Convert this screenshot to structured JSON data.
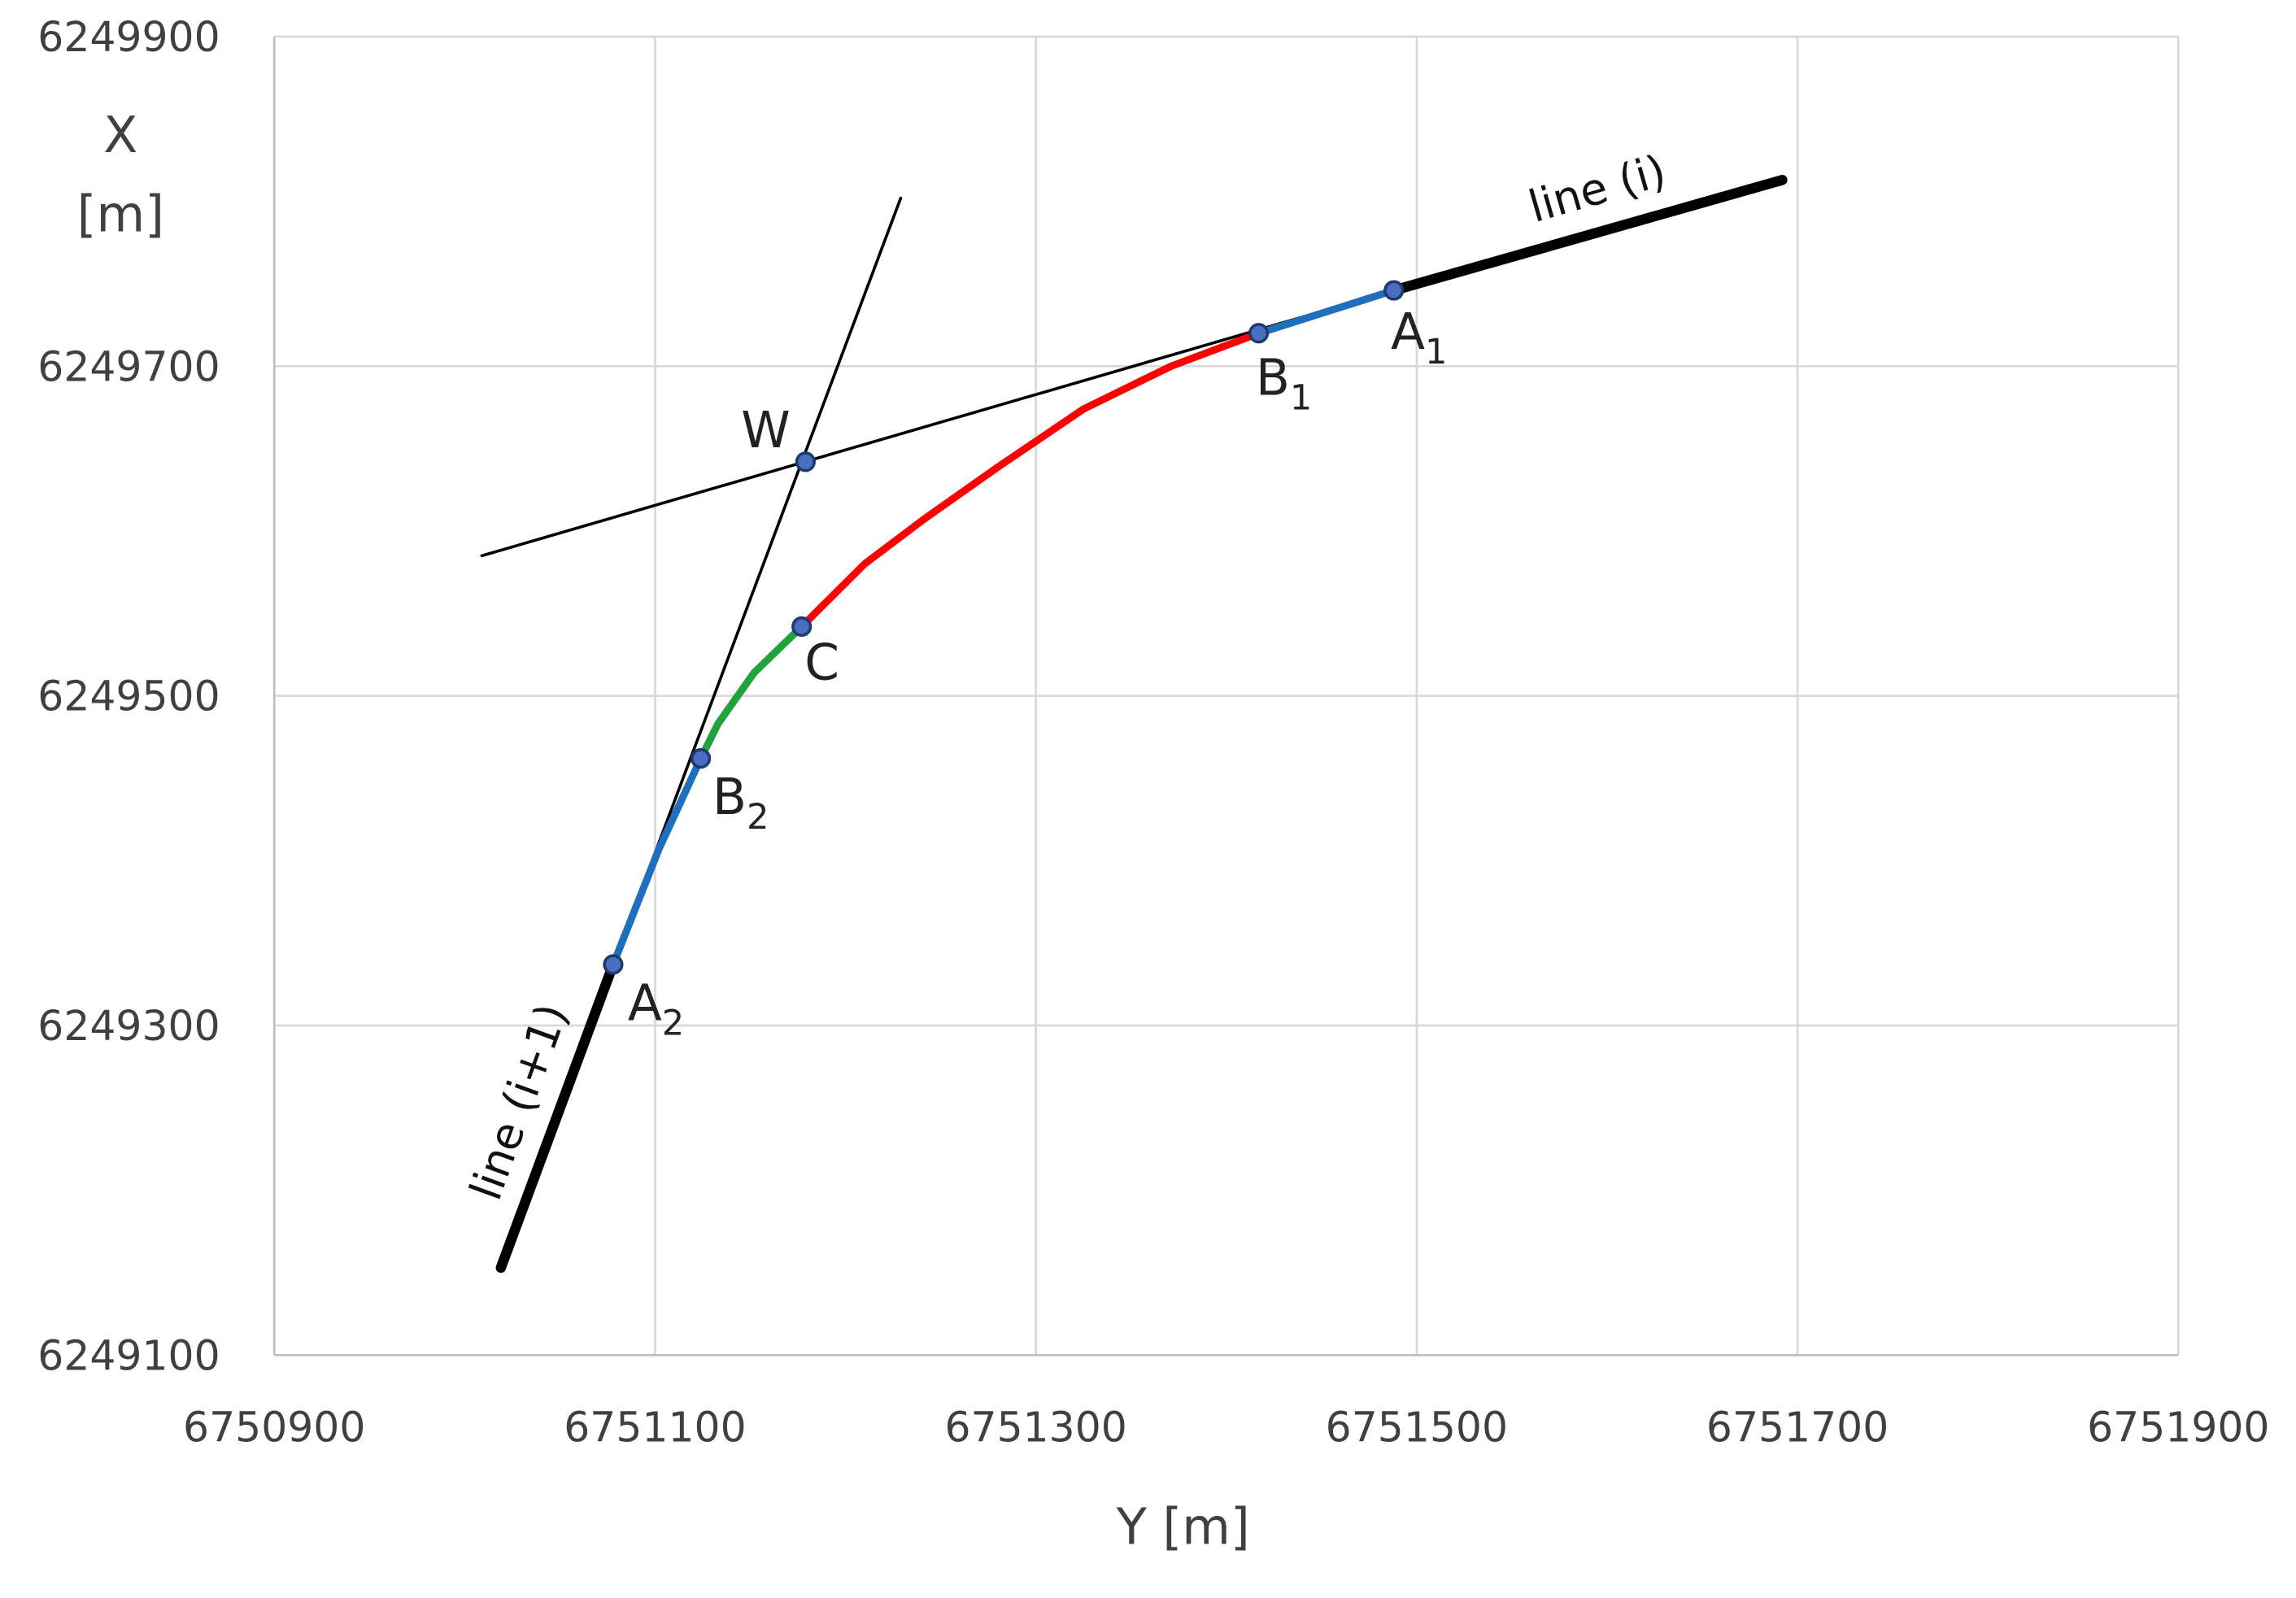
{
  "chart_data": {
    "type": "line",
    "xlabel": "Y [m]",
    "ylabel": [
      "X",
      "[m]"
    ],
    "xlim": [
      6750900,
      6751900
    ],
    "xticks": [
      6750900,
      6751100,
      6751300,
      6751500,
      6751700,
      6751900
    ],
    "ylim": [
      6249100,
      6249900
    ],
    "yticks": [
      6249100,
      6249300,
      6249500,
      6249700,
      6249900
    ],
    "grid": true,
    "series": [
      {
        "color": "#000000",
        "width": 2,
        "x": [
          6751009,
          6751488
        ],
        "values": [
          6249585,
          6249746
        ]
      },
      {
        "color": "#000000",
        "width": 2,
        "x": [
          6751229,
          6751078
        ],
        "values": [
          6249802,
          6249337
        ]
      },
      {
        "color": "#000000",
        "width": 7,
        "x": [
          6751488,
          6751692
        ],
        "values": [
          6249746,
          6249813
        ]
      },
      {
        "color": "#000000",
        "width": 7,
        "x": [
          6751078,
          6751019
        ],
        "values": [
          6249337,
          6249153
        ]
      },
      {
        "color": "#1f6fbf",
        "width": 5,
        "x": [
          6751417,
          6751488
        ],
        "values": [
          6249720,
          6249746
        ]
      },
      {
        "color": "#ff0000",
        "width": 5,
        "x": [
          6751417,
          6751371,
          6751325,
          6751279,
          6751241,
          6751210,
          6751177
        ],
        "values": [
          6249720,
          6249700,
          6249674,
          6249638,
          6249607,
          6249580,
          6249542
        ]
      },
      {
        "color": "#1fa33a",
        "width": 5,
        "x": [
          6751177,
          6751152,
          6751133,
          6751124
        ],
        "values": [
          6249542,
          6249514,
          6249483,
          6249462
        ]
      },
      {
        "color": "#1f6fbf",
        "width": 5,
        "x": [
          6751124,
          6751102,
          6751078
        ],
        "values": [
          6249462,
          6249407,
          6249337
        ]
      }
    ],
    "points": [
      {
        "label": "A",
        "subscript": "1",
        "x": 6751488,
        "y": 6249746
      },
      {
        "label": "B",
        "subscript": "1",
        "x": 6751417,
        "y": 6249720
      },
      {
        "label": "W",
        "x": 6751179,
        "y": 6249642
      },
      {
        "label": "C",
        "x": 6751177,
        "y": 6249542
      },
      {
        "label": "B",
        "subscript": "2",
        "x": 6751124,
        "y": 6249462
      },
      {
        "label": "A",
        "subscript": "2",
        "x": 6751078,
        "y": 6249337
      }
    ],
    "annotations": [
      "line (i)",
      "line (i+1)"
    ]
  }
}
